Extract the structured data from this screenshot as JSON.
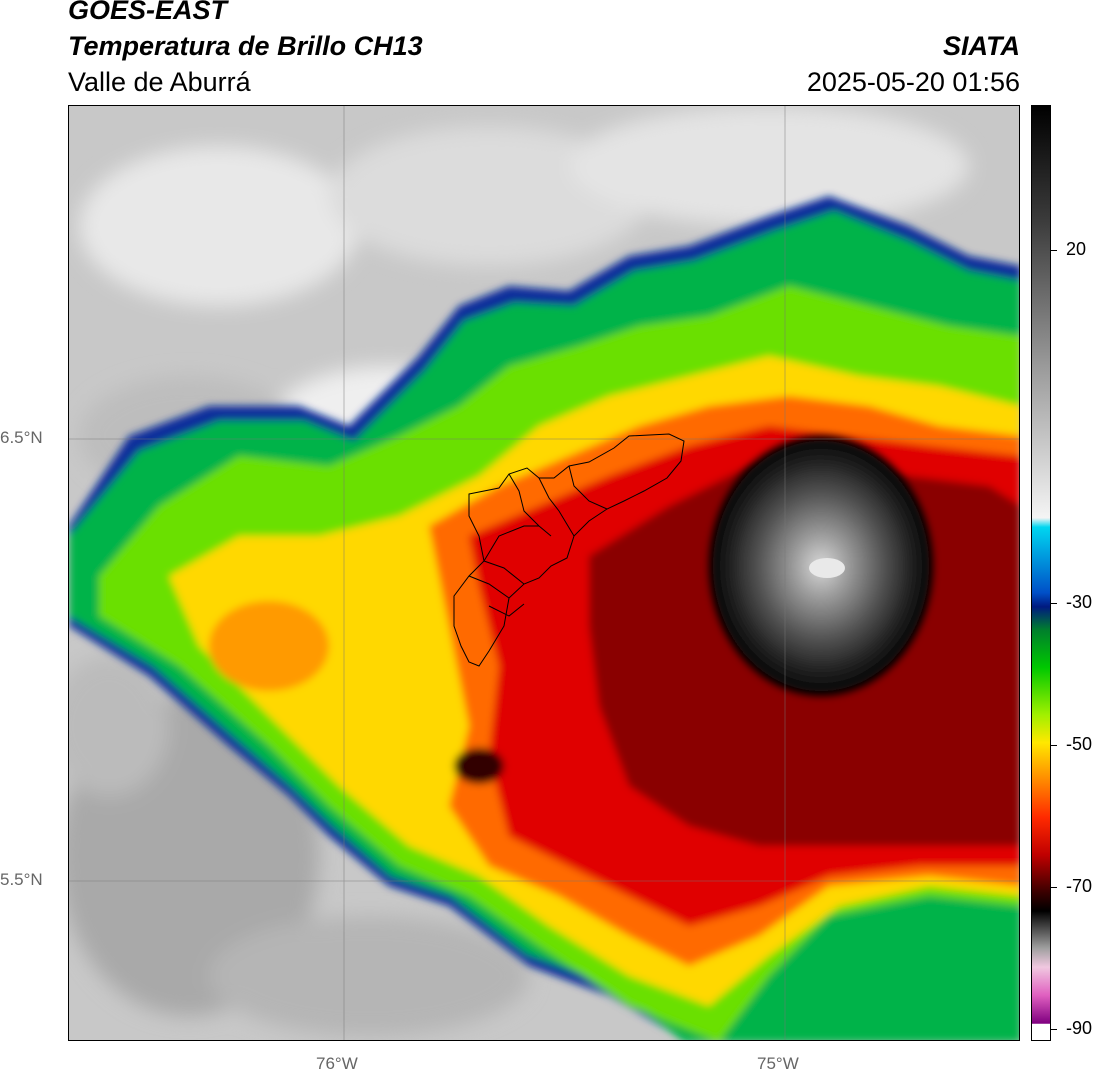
{
  "header": {
    "satellite": "GOES-EAST",
    "product": "Temperatura de Brillo CH13",
    "region": "Valle de Aburrá",
    "agency": "SIATA",
    "datetime": "2025-05-20 01:56"
  },
  "map": {
    "lat_labels": [
      "6.5°N",
      "5.5°N"
    ],
    "lon_labels": [
      "76°W",
      "75°W"
    ],
    "grid": true
  },
  "colorbar": {
    "labels": [
      "20",
      "-30",
      "-50",
      "-70",
      "-90"
    ],
    "range": [
      -90,
      35
    ]
  }
}
